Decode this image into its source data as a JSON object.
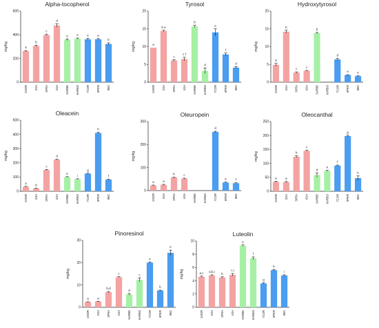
{
  "colors": {
    "group1": "#f4a3a3",
    "group2": "#a6f0a6",
    "group3": "#4a9df0",
    "axis": "#222222"
  },
  "chart_data": [
    {
      "type": "bar",
      "title": "Alpha-tocopherol",
      "ylabel": "mg/kg",
      "categories": [
        "1MOR",
        "2OA",
        "3FRA",
        "4OA",
        "5ARBE",
        "6ARBO",
        "7COR",
        "8PER",
        "9BC"
      ],
      "values": [
        262,
        306,
        398,
        478,
        358,
        367,
        362,
        362,
        322
      ],
      "errors": [
        5,
        6,
        6,
        15,
        7,
        6,
        8,
        6,
        10
      ],
      "letters": [
        "a",
        "b",
        "c",
        "d",
        "e",
        "e",
        "e",
        "e",
        "b"
      ],
      "groups": [
        "group1",
        "group1",
        "group1",
        "group1",
        "group2",
        "group2",
        "group3",
        "group3",
        "group3"
      ],
      "ylim": [
        0,
        600
      ],
      "yticks": [
        0,
        200,
        400,
        600
      ]
    },
    {
      "type": "bar",
      "title": "Tyrosol",
      "ylabel": "mg/kg",
      "categories": [
        "1MOR",
        "2OA",
        "3FRA",
        "4OA",
        "5ARBE",
        "6ARBO",
        "7COR",
        "8PER",
        "9BC"
      ],
      "values": [
        9.7,
        14.4,
        6.1,
        6.5,
        15.7,
        3.2,
        14,
        7.8,
        4.1
      ],
      "errors": [
        0,
        0.2,
        0.2,
        0.5,
        0.3,
        0.8,
        1.0,
        0.4,
        0.3
      ],
      "letters": [
        "a",
        "b e",
        "c",
        "c f",
        "b",
        "d",
        "e",
        "f",
        "d"
      ],
      "groups": [
        "group1",
        "group1",
        "group1",
        "group1",
        "group2",
        "group2",
        "group3",
        "group3",
        "group3"
      ],
      "ylim": [
        0,
        20
      ],
      "yticks": [
        0,
        5,
        10,
        15,
        20
      ]
    },
    {
      "type": "bar",
      "title": "Hydroxytyrosol",
      "ylabel": "mg/kg",
      "categories": [
        "1MOR",
        "2OA",
        "3FRA",
        "4OA",
        "5ARBE",
        "6ARBO",
        "7COR",
        "8PER",
        "9BC"
      ],
      "values": [
        4.9,
        14.2,
        2.7,
        3.2,
        13.8,
        0,
        6.4,
        2,
        1.7
      ],
      "errors": [
        0.4,
        0.4,
        0.2,
        0.1,
        0.2,
        0,
        0.3,
        0.1,
        0.1
      ],
      "letters": [
        "a",
        "b",
        "c",
        "c",
        "b",
        "",
        "d",
        "e",
        "e"
      ],
      "groups": [
        "group1",
        "group1",
        "group1",
        "group1",
        "group2",
        "group2",
        "group3",
        "group3",
        "group3"
      ],
      "ylim": [
        0,
        20
      ],
      "yticks": [
        0,
        5,
        10,
        15,
        20
      ]
    },
    {
      "type": "bar",
      "title": "Oleacein",
      "ylabel": "mg/kg",
      "categories": [
        "1MOR",
        "2OA",
        "3FRA",
        "4OA",
        "5ARBE",
        "6ARBO",
        "7COR",
        "8PER",
        "9BC"
      ],
      "values": [
        32,
        20,
        150,
        222,
        100,
        85,
        124,
        410,
        82
      ],
      "errors": [
        3,
        2,
        3,
        3,
        3,
        3,
        3,
        4,
        3
      ],
      "letters": [
        "a",
        "b",
        "c",
        "d",
        "e",
        "i",
        "g",
        "h",
        "f"
      ],
      "groups": [
        "group1",
        "group1",
        "group1",
        "group1",
        "group2",
        "group2",
        "group3",
        "group3",
        "group3"
      ],
      "ylim": [
        0,
        500
      ],
      "yticks": [
        0,
        100,
        200,
        300,
        400,
        500
      ]
    },
    {
      "type": "bar",
      "title": "Oleuropein",
      "ylabel": "mg/kg",
      "categories": [
        "1MOR",
        "2OA",
        "3FRA",
        "4OA",
        "5ARBE",
        "6ARBO",
        "7COR",
        "8PER",
        "9BC"
      ],
      "values": [
        22,
        25,
        57,
        52,
        0,
        0,
        255,
        35,
        32
      ],
      "errors": [
        2,
        2,
        2,
        2,
        0,
        0,
        3,
        2,
        2
      ],
      "letters": [
        "a",
        "a",
        "b",
        "c",
        "",
        "",
        "d",
        "e",
        "f"
      ],
      "groups": [
        "group1",
        "group1",
        "group1",
        "group1",
        "group2",
        "group2",
        "group3",
        "group3",
        "group3"
      ],
      "ylim": [
        0,
        300
      ],
      "yticks": [
        0,
        100,
        200,
        300
      ]
    },
    {
      "type": "bar",
      "title": "Oleocanthal",
      "ylabel": "mg/kg",
      "categories": [
        "1MOR",
        "2OA",
        "3FRA",
        "4OA",
        "5ARBE",
        "6ARBO",
        "7COR",
        "8PER",
        "9BC"
      ],
      "values": [
        34,
        33,
        124,
        145,
        58,
        73,
        92,
        198,
        47
      ],
      "errors": [
        2,
        2,
        3,
        2,
        8,
        2,
        2,
        3,
        8
      ],
      "letters": [
        "a",
        "a",
        "b",
        "c",
        "d",
        "e",
        "f",
        "g",
        "h"
      ],
      "groups": [
        "group1",
        "group1",
        "group1",
        "group1",
        "group2",
        "group2",
        "group3",
        "group3",
        "group3"
      ],
      "ylim": [
        0,
        250
      ],
      "yticks": [
        0,
        50,
        100,
        150,
        200,
        250
      ]
    },
    {
      "type": "bar",
      "title": "Pinoresinol",
      "ylabel": "mg/kg",
      "categories": [
        "1MOR",
        "2OA",
        "3FRA",
        "4OA",
        "5ARBE",
        "6ARBO",
        "7COR",
        "8PER",
        "9BC"
      ],
      "values": [
        2.4,
        2.6,
        6.8,
        13.5,
        5.8,
        12.3,
        20,
        7.5,
        24.4
      ],
      "errors": [
        0.1,
        0.1,
        0.3,
        0.2,
        0.4,
        0.9,
        0.3,
        0.2,
        1.2
      ],
      "letters": [
        "a",
        "a",
        "b,d",
        "c",
        "d",
        "c",
        "e",
        "b",
        "e"
      ],
      "groups": [
        "group1",
        "group1",
        "group1",
        "group1",
        "group2",
        "group2",
        "group3",
        "group3",
        "group3"
      ],
      "ylim": [
        0,
        30
      ],
      "yticks": [
        0,
        10,
        20,
        30
      ]
    },
    {
      "type": "bar",
      "title": "Luteolin",
      "ylabel": "mg/kg",
      "categories": [
        "1MOR",
        "2OA",
        "3FRA",
        "4OA",
        "5ARBE",
        "6ARBO",
        "7COR",
        "8PER",
        "9BC"
      ],
      "values": [
        4.6,
        4.8,
        4.5,
        4.9,
        9.3,
        7.4,
        3.6,
        5.6,
        4.8
      ],
      "errors": [
        0.1,
        0.1,
        0.1,
        0.2,
        0.1,
        0.2,
        0.1,
        0.1,
        0.1
      ],
      "letters": [
        "a,c",
        "a,b,i",
        "b",
        "c,i",
        "e",
        "f",
        "g",
        "h",
        "i"
      ],
      "groups": [
        "group1",
        "group1",
        "group1",
        "group1",
        "group2",
        "group2",
        "group3",
        "group3",
        "group3"
      ],
      "ylim": [
        0,
        10
      ],
      "yticks": [
        0,
        2,
        4,
        6,
        8,
        10
      ]
    }
  ]
}
